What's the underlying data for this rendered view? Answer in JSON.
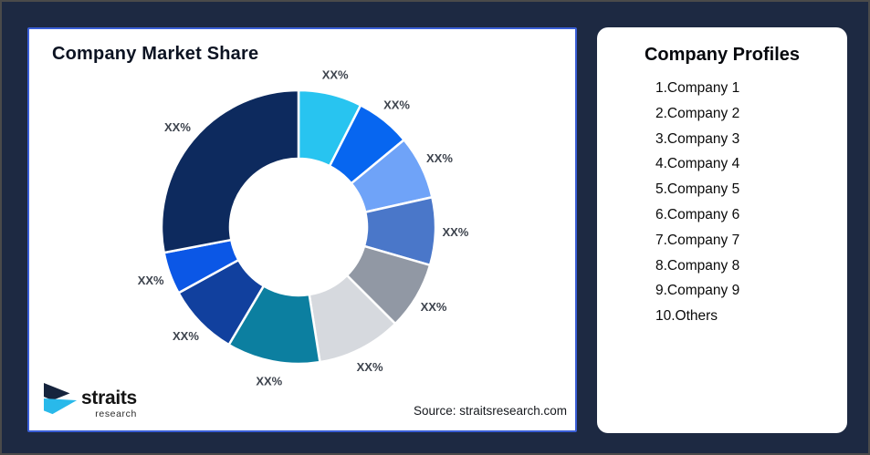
{
  "frame": {
    "background_color": "#1d2942"
  },
  "market_share_card": {
    "title": "Company Market Share",
    "source_note": "Source: straitsresearch.com",
    "border_color": "#3a5ed6",
    "logo": {
      "brand": "straits",
      "brand_sub": "research",
      "icon": "straits-arrow-icon",
      "icon_navy": "#16243d",
      "icon_cyan": "#29b9ea"
    }
  },
  "company_profiles_card": {
    "title": "Company Profiles",
    "items": [
      "1.Company 1",
      "2.Company 2",
      "3.Company 3",
      "4.Company 4",
      "5.Company 5",
      "6.Company 6",
      "7.Company 7",
      "8.Company 8",
      "9.Company 9",
      "10.Others"
    ]
  },
  "chart_data": {
    "type": "pie",
    "subtype": "donut",
    "title": "Company Market Share",
    "value_labels_masked": true,
    "label_text": "XX%",
    "start_angle_deg": 0,
    "direction": "clockwise",
    "inner_radius_ratio": 0.5,
    "label_color": "#3d434d",
    "gap_stroke_color": "#ffffff",
    "segments": [
      {
        "name": "Company 1",
        "approx_share_pct": 7.5,
        "label": "XX%",
        "color": "#28c4f0"
      },
      {
        "name": "Company 2",
        "approx_share_pct": 6.5,
        "label": "XX%",
        "color": "#0766f0"
      },
      {
        "name": "Company 3",
        "approx_share_pct": 7.5,
        "label": "XX%",
        "color": "#6fa3f8"
      },
      {
        "name": "Company 4",
        "approx_share_pct": 8.0,
        "label": "XX%",
        "color": "#4a77c9"
      },
      {
        "name": "Company 5",
        "approx_share_pct": 8.0,
        "label": "XX%",
        "color": "#9198a4"
      },
      {
        "name": "Company 6",
        "approx_share_pct": 10.0,
        "label": "XX%",
        "color": "#d6d9de"
      },
      {
        "name": "Company 7",
        "approx_share_pct": 11.0,
        "label": "XX%",
        "color": "#0c7fa0"
      },
      {
        "name": "Company 8",
        "approx_share_pct": 8.5,
        "label": "XX%",
        "color": "#11409e"
      },
      {
        "name": "Company 9",
        "approx_share_pct": 5.0,
        "label": "XX%",
        "color": "#0b57e6"
      },
      {
        "name": "Others",
        "approx_share_pct": 28.0,
        "label": "XX%",
        "color": "#0d2a5e"
      }
    ]
  }
}
